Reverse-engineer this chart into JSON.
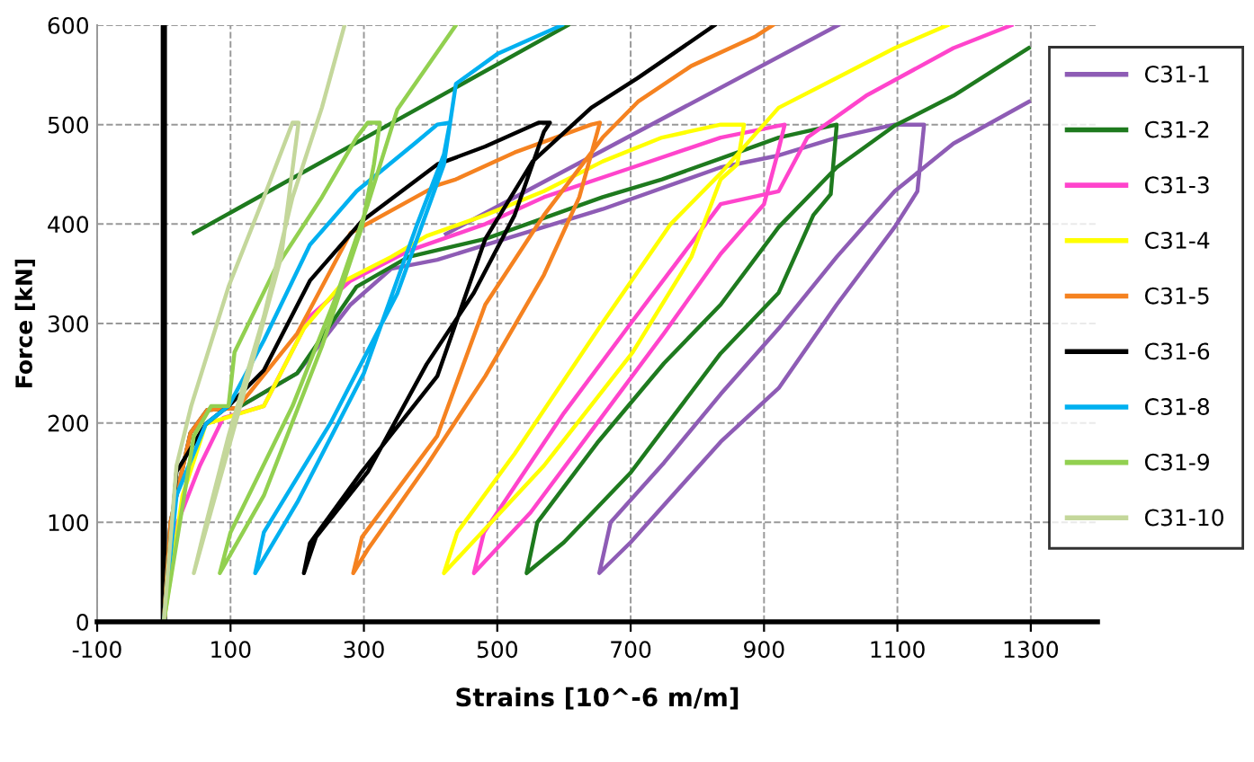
{
  "chart_data": {
    "type": "line",
    "xlabel": "Strains [10^-6 m/m]",
    "ylabel": "Force [kN]",
    "xlim": [
      -100,
      1400
    ],
    "ylim": [
      0,
      600
    ],
    "xticks": [
      -100,
      100,
      300,
      500,
      700,
      900,
      1100,
      1300
    ],
    "yticks": [
      0,
      100,
      200,
      300,
      400,
      500,
      600
    ],
    "grid": true,
    "legend": "right",
    "marker": "none",
    "line_style": "solid",
    "ref_lines": [
      {
        "axis": "x",
        "value": 0,
        "color": "#000000"
      }
    ],
    "series": [
      {
        "name": "C31-1",
        "color": "#8e5cb5",
        "x": [
          0,
          10,
          40,
          65,
          110,
          200,
          280,
          341,
          410,
          482,
          658,
          835,
          922,
          1009,
          1096,
          1140,
          1130,
          1096,
          1009,
          922,
          835,
          700,
          653,
          670,
          750,
          835,
          922,
          1009,
          1096,
          1184,
          1297,
          null,
          423,
          1011
        ],
        "values": [
          0,
          100,
          190,
          213,
          215,
          250,
          319,
          355,
          364,
          379,
          415,
          457,
          469,
          487,
          500,
          500,
          433,
          397,
          319,
          235,
          181,
          80,
          49,
          100,
          160,
          229,
          295,
          367,
          433,
          481,
          523,
          null,
          390,
          600
        ]
      },
      {
        "name": "C31-2",
        "color": "#1e7a1e",
        "x": [
          0,
          10,
          40,
          65,
          110,
          200,
          289,
          367,
          482,
          658,
          747,
          835,
          922,
          1009,
          1000,
          974,
          922,
          835,
          700,
          600,
          544,
          560,
          650,
          750,
          835,
          922,
          1009,
          1096,
          1184,
          1297,
          null,
          45,
          606
        ],
        "values": [
          0,
          100,
          190,
          213,
          215,
          250,
          337,
          367,
          385,
          427,
          445,
          466,
          487,
          500,
          430,
          409,
          331,
          270,
          150,
          80,
          49,
          100,
          180,
          260,
          319,
          397,
          457,
          499,
          529,
          577,
          null,
          391,
          600
        ]
      },
      {
        "name": "C31-3",
        "color": "#ff44cc",
        "x": [
          0,
          19,
          54,
          89,
          150,
          219,
          280,
          367,
          482,
          570,
          703,
          835,
          931,
          920,
          900,
          835,
          750,
          650,
          550,
          465,
          480,
          600,
          700,
          835,
          922,
          965,
          1053,
          1184,
          1271
        ],
        "values": [
          0,
          97,
          157,
          205,
          217,
          307,
          343,
          373,
          400,
          427,
          457,
          487,
          500,
          470,
          420,
          370,
          290,
          200,
          110,
          49,
          90,
          210,
          300,
          420,
          433,
          487,
          529,
          577,
          600
        ]
      },
      {
        "name": "C31-4",
        "color": "#ffff00",
        "x": [
          0,
          28,
          63,
          150,
          210,
          271,
          341,
          394,
          482,
          570,
          658,
          747,
          835,
          870,
          860,
          835,
          791,
          703,
          570,
          420,
          440,
          526,
          658,
          760,
          835,
          922,
          1009,
          1096,
          1175
        ],
        "values": [
          0,
          127,
          199,
          217,
          295,
          343,
          367,
          388,
          409,
          433,
          463,
          487,
          500,
          500,
          460,
          445,
          367,
          271,
          157,
          49,
          90,
          169,
          301,
          400,
          451,
          517,
          547,
          577,
          600
        ]
      },
      {
        "name": "C31-5",
        "color": "#f58220",
        "x": [
          0,
          10,
          40,
          65,
          110,
          200,
          280,
          410,
          438,
          526,
          641,
          654,
          623,
          570,
          482,
          394,
          306,
          284,
          297,
          410,
          482,
          570,
          658,
          711,
          791,
          888,
          913
        ],
        "values": [
          0,
          100,
          190,
          213,
          215,
          290,
          391,
          439,
          445,
          472,
          500,
          502,
          427,
          349,
          247,
          157,
          73,
          49,
          85,
          187,
          319,
          409,
          487,
          523,
          559,
          589,
          600
        ]
      },
      {
        "name": "C31-6",
        "color": "#000000",
        "x": [
          0,
          19,
          63,
          97,
          150,
          219,
          297,
          410,
          482,
          562,
          579,
          570,
          526,
          465,
          394,
          306,
          228,
          210,
          219,
          297,
          410,
          482,
          553,
          641,
          711,
          826
        ],
        "values": [
          0,
          151,
          199,
          217,
          253,
          343,
          403,
          460,
          478,
          502,
          502,
          493,
          409,
          331,
          259,
          151,
          85,
          49,
          79,
          151,
          247,
          385,
          463,
          517,
          547,
          600
        ]
      },
      {
        "name": "C31-8",
        "color": "#00b0f0",
        "x": [
          0,
          19,
          63,
          97,
          150,
          219,
          289,
          376,
          410,
          429,
          420,
          380,
          300,
          200,
          137,
          150,
          250,
          350,
          420,
          438,
          500,
          597
        ],
        "values": [
          0,
          127,
          199,
          217,
          283,
          379,
          433,
          481,
          500,
          502,
          470,
          400,
          250,
          120,
          49,
          90,
          200,
          330,
          460,
          541,
          571,
          600
        ]
      },
      {
        "name": "C31-9",
        "color": "#92d050",
        "x": [
          0,
          45,
          71,
          97,
          106,
          167,
          237,
          289,
          306,
          324,
          315,
          297,
          237,
          150,
          84,
          100,
          193,
          260,
          306,
          350,
          438
        ],
        "values": [
          0,
          187,
          217,
          217,
          271,
          355,
          427,
          487,
          502,
          502,
          460,
          397,
          277,
          127,
          49,
          90,
          217,
          330,
          420,
          515,
          600
        ]
      },
      {
        "name": "C31-10",
        "color": "#c4d79b",
        "x": [
          0,
          19,
          41,
          97,
          150,
          193,
          202,
          190,
          176,
          120,
          45,
          60,
          97,
          150,
          193,
          237,
          271
        ],
        "values": [
          0,
          157,
          217,
          337,
          427,
          502,
          502,
          440,
          367,
          230,
          49,
          90,
          187,
          307,
          427,
          517,
          600
        ]
      }
    ]
  }
}
